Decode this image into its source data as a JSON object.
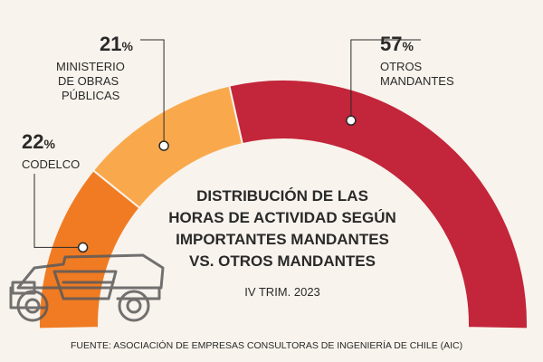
{
  "chart_data": {
    "type": "pie",
    "variant": "half-donut",
    "title_lines": [
      "DISTRIBUCIÓN  DE LAS",
      "HORAS DE ACTIVIDAD SEGÚN",
      "IMPORTANTES MANDANTES",
      "VS. OTROS MANDANTES"
    ],
    "subtitle": "IV TRIM. 2023",
    "source": "FUENTE: ASOCIACIÓN DE EMPRESAS CONSULTORAS DE INGENIERÍA DE CHILE (AIC)",
    "unit": "%",
    "slices": [
      {
        "name_lines": [
          "CODELCO"
        ],
        "value": 22,
        "color": "#f07b22"
      },
      {
        "name_lines": [
          "MINISTERIO",
          "DE OBRAS",
          "PÚBLICAS"
        ],
        "value": 21,
        "color": "#f9a94c"
      },
      {
        "name_lines": [
          "OTROS",
          "MANDANTES"
        ],
        "value": 57,
        "color": "#c3253a"
      }
    ]
  },
  "icons": [
    "mining-truck-icon"
  ]
}
